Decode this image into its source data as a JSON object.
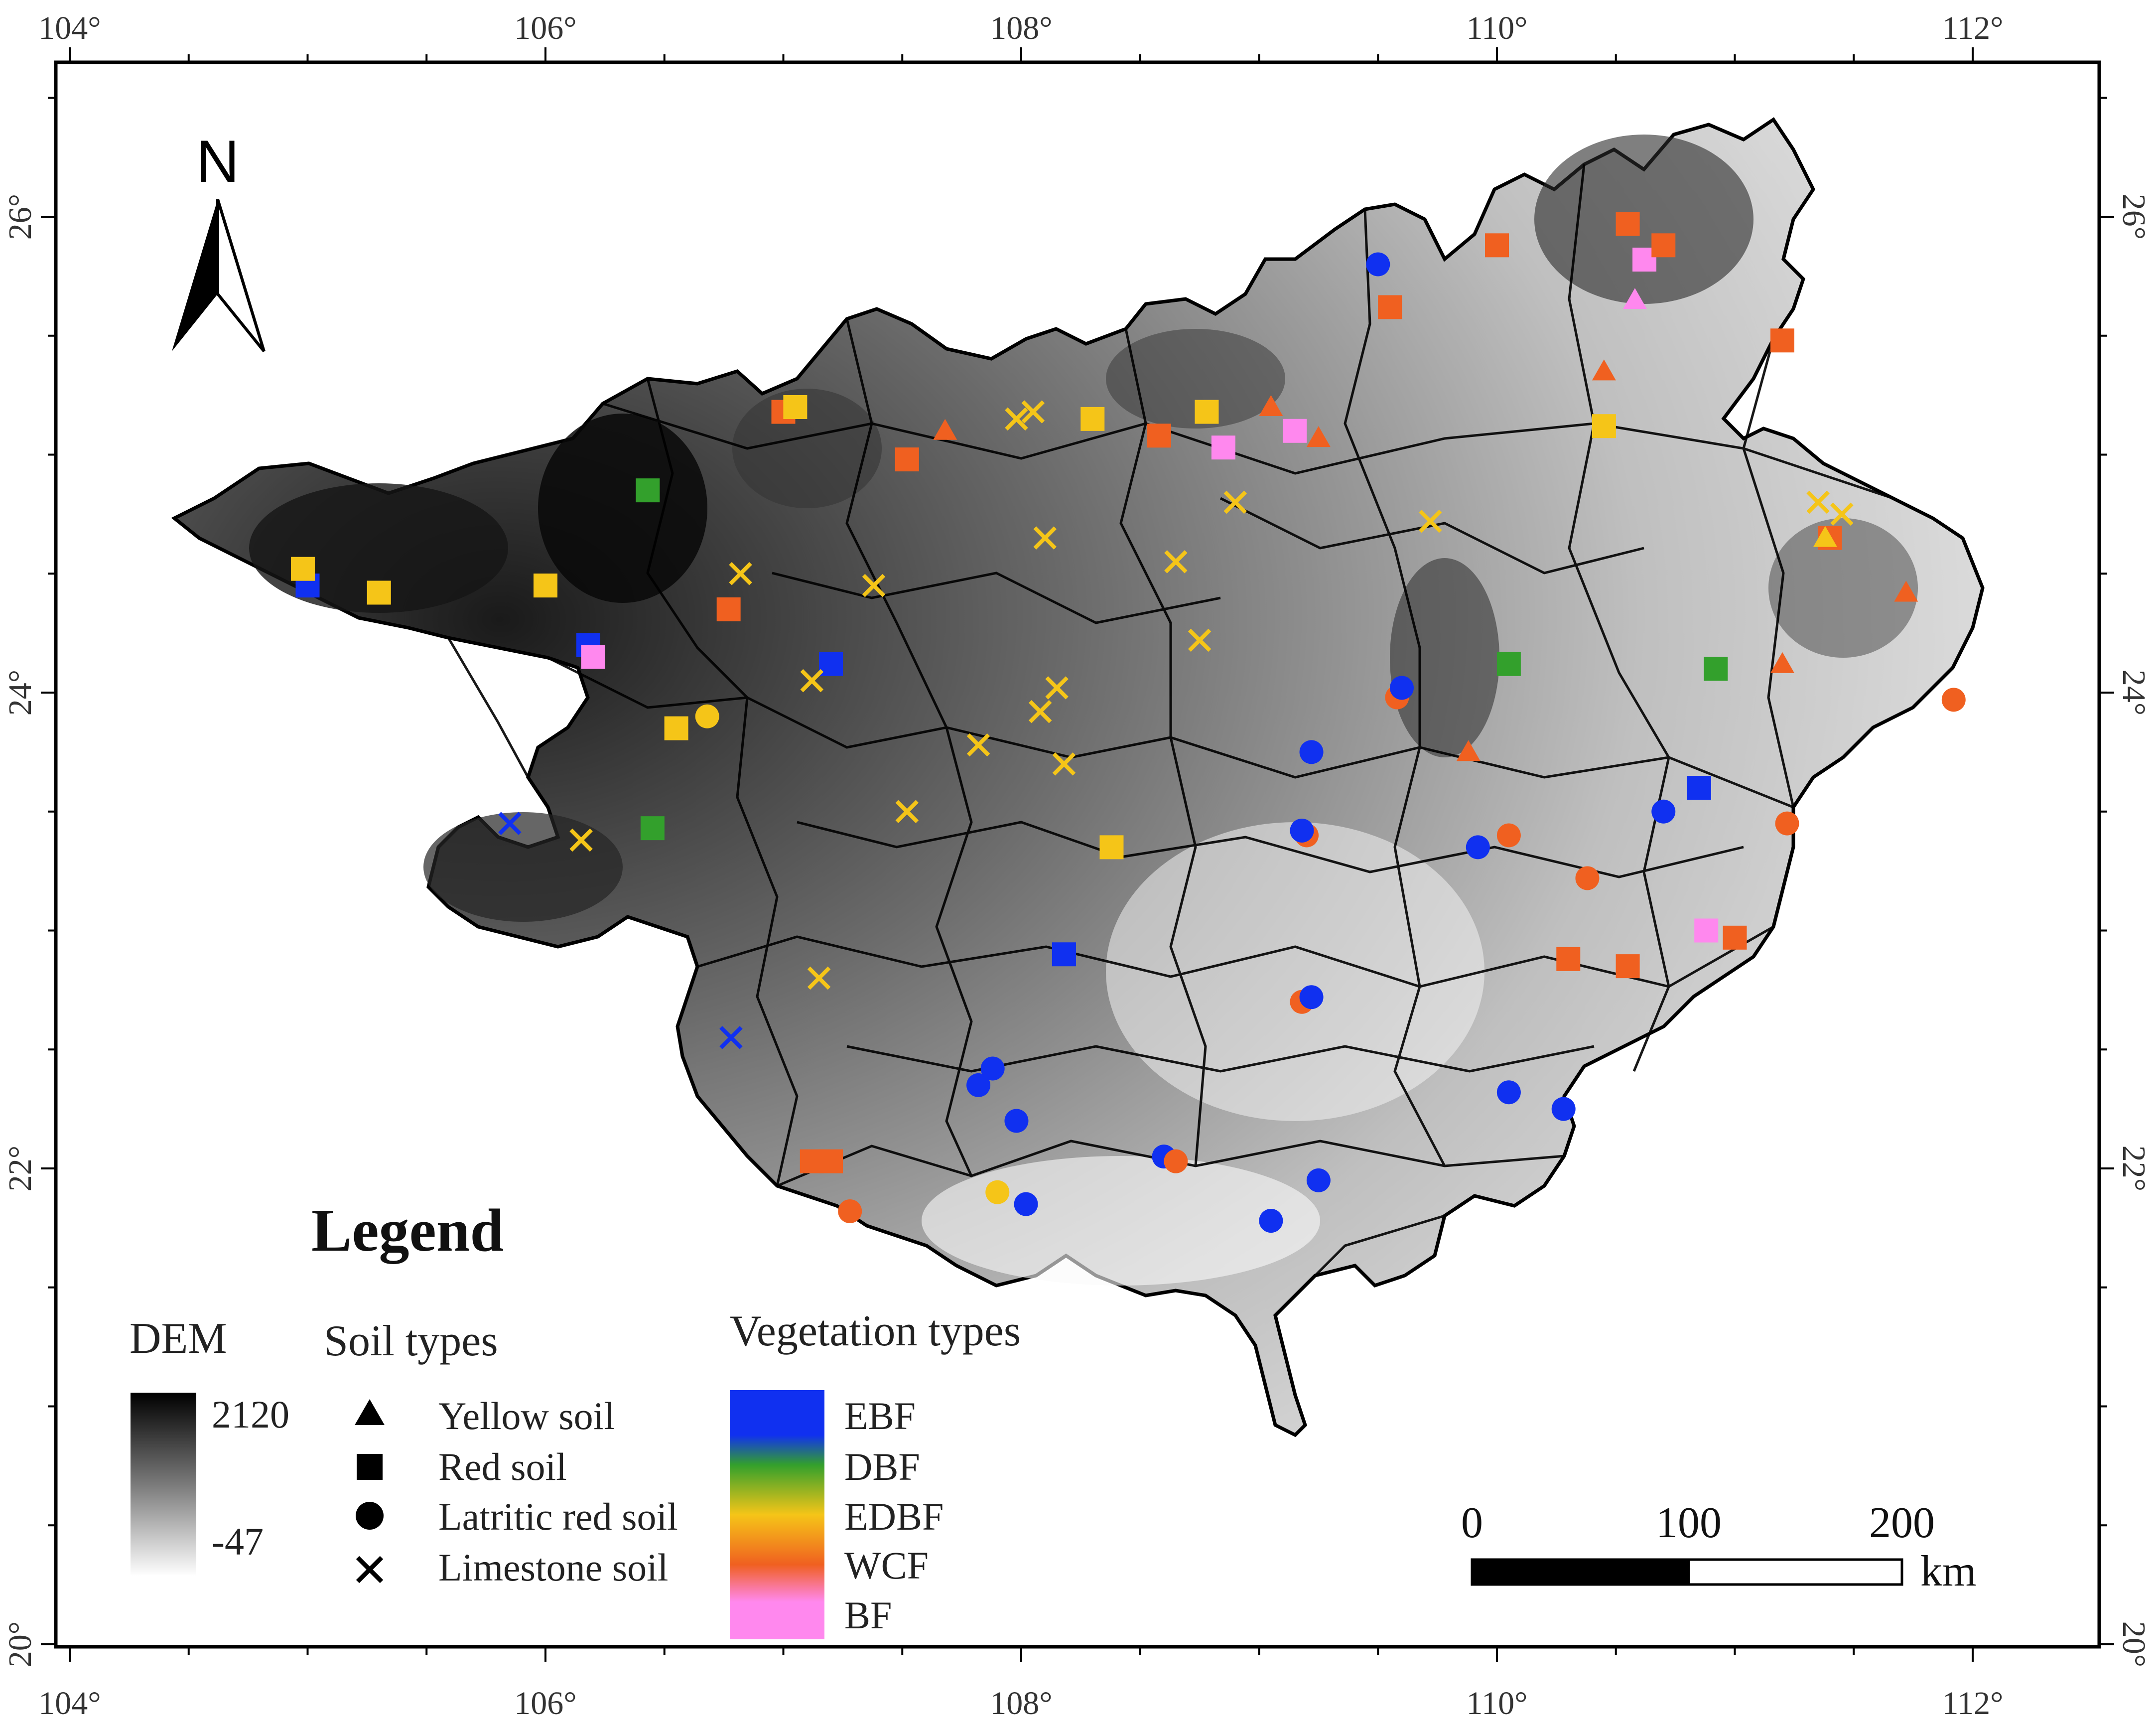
{
  "map": {
    "lon_labels": [
      "104°",
      "106°",
      "108°",
      "110°",
      "112°"
    ],
    "lat_labels": [
      "26°",
      "24°",
      "22°",
      "20°"
    ],
    "north_label": "N"
  },
  "legend": {
    "title": "Legend",
    "dem": {
      "title": "DEM",
      "max_label": "2120",
      "min_label": "-47",
      "max_value": 2120,
      "min_value": -47
    },
    "soil": {
      "title": "Soil types",
      "items": [
        {
          "label": "Yellow soil",
          "symbol": "triangle"
        },
        {
          "label": "Red soil",
          "symbol": "square"
        },
        {
          "label": "Latritic red soil",
          "symbol": "circle"
        },
        {
          "label": "Limestone soil",
          "symbol": "cross"
        }
      ]
    },
    "vegetation": {
      "title": "Vegetation types",
      "items": [
        {
          "label": "EBF",
          "color": "#1030f0"
        },
        {
          "label": "DBF",
          "color": "#33a02c"
        },
        {
          "label": "EDBF",
          "color": "#f5c518"
        },
        {
          "label": "WCF",
          "color": "#f06020"
        },
        {
          "label": "BF",
          "color": "#ff88ee"
        }
      ]
    }
  },
  "scale_bar": {
    "labels": [
      "0",
      "100",
      "200"
    ],
    "unit": "km"
  },
  "sites": [
    {
      "lon": 105.0,
      "lat": 24.45,
      "soil": "square",
      "veg": "EBF"
    },
    {
      "lon": 104.98,
      "lat": 24.52,
      "soil": "square",
      "veg": "EDBF"
    },
    {
      "lon": 105.3,
      "lat": 24.42,
      "soil": "square",
      "veg": "EDBF"
    },
    {
      "lon": 106.0,
      "lat": 24.45,
      "soil": "square",
      "veg": "EDBF"
    },
    {
      "lon": 106.18,
      "lat": 24.2,
      "soil": "square",
      "veg": "EBF"
    },
    {
      "lon": 106.2,
      "lat": 24.15,
      "soil": "square",
      "veg": "BF"
    },
    {
      "lon": 106.43,
      "lat": 24.85,
      "soil": "square",
      "veg": "DBF"
    },
    {
      "lon": 106.77,
      "lat": 24.35,
      "soil": "square",
      "veg": "WCF"
    },
    {
      "lon": 106.82,
      "lat": 24.5,
      "soil": "cross",
      "veg": "EDBF"
    },
    {
      "lon": 107.0,
      "lat": 25.18,
      "soil": "square",
      "veg": "WCF"
    },
    {
      "lon": 107.05,
      "lat": 25.2,
      "soil": "square",
      "veg": "EDBF"
    },
    {
      "lon": 107.38,
      "lat": 24.45,
      "soil": "cross",
      "veg": "EDBF"
    },
    {
      "lon": 107.52,
      "lat": 24.98,
      "soil": "square",
      "veg": "WCF"
    },
    {
      "lon": 107.68,
      "lat": 25.1,
      "soil": "triangle",
      "veg": "WCF"
    },
    {
      "lon": 107.2,
      "lat": 24.12,
      "soil": "square",
      "veg": "EBF"
    },
    {
      "lon": 107.12,
      "lat": 24.05,
      "soil": "cross",
      "veg": "EDBF"
    },
    {
      "lon": 106.55,
      "lat": 23.85,
      "soil": "square",
      "veg": "EDBF"
    },
    {
      "lon": 106.68,
      "lat": 23.9,
      "soil": "circle",
      "veg": "EDBF"
    },
    {
      "lon": 106.45,
      "lat": 23.43,
      "soil": "square",
      "veg": "DBF"
    },
    {
      "lon": 106.15,
      "lat": 23.38,
      "soil": "cross",
      "veg": "EDBF"
    },
    {
      "lon": 105.85,
      "lat": 23.45,
      "soil": "cross",
      "veg": "EBF"
    },
    {
      "lon": 107.98,
      "lat": 25.15,
      "soil": "cross",
      "veg": "EDBF"
    },
    {
      "lon": 108.05,
      "lat": 25.18,
      "soil": "cross",
      "veg": "EDBF"
    },
    {
      "lon": 108.3,
      "lat": 25.15,
      "soil": "square",
      "veg": "EDBF"
    },
    {
      "lon": 108.58,
      "lat": 25.08,
      "soil": "square",
      "veg": "WCF"
    },
    {
      "lon": 108.78,
      "lat": 25.18,
      "soil": "square",
      "veg": "EDBF"
    },
    {
      "lon": 108.1,
      "lat": 24.65,
      "soil": "cross",
      "veg": "EDBF"
    },
    {
      "lon": 108.65,
      "lat": 24.55,
      "soil": "cross",
      "veg": "EDBF"
    },
    {
      "lon": 108.9,
      "lat": 24.8,
      "soil": "cross",
      "veg": "EDBF"
    },
    {
      "lon": 108.85,
      "lat": 25.03,
      "soil": "square",
      "veg": "BF"
    },
    {
      "lon": 109.05,
      "lat": 25.2,
      "soil": "triangle",
      "veg": "WCF"
    },
    {
      "lon": 109.15,
      "lat": 25.1,
      "soil": "square",
      "veg": "BF"
    },
    {
      "lon": 109.25,
      "lat": 25.07,
      "soil": "triangle",
      "veg": "WCF"
    },
    {
      "lon": 108.75,
      "lat": 24.22,
      "soil": "cross",
      "veg": "EDBF"
    },
    {
      "lon": 108.15,
      "lat": 24.02,
      "soil": "cross",
      "veg": "EDBF"
    },
    {
      "lon": 108.08,
      "lat": 23.92,
      "soil": "cross",
      "veg": "EDBF"
    },
    {
      "lon": 107.82,
      "lat": 23.78,
      "soil": "cross",
      "veg": "EDBF"
    },
    {
      "lon": 108.18,
      "lat": 23.7,
      "soil": "cross",
      "veg": "EDBF"
    },
    {
      "lon": 107.52,
      "lat": 23.5,
      "soil": "cross",
      "veg": "EDBF"
    },
    {
      "lon": 108.38,
      "lat": 23.35,
      "soil": "square",
      "veg": "EDBF"
    },
    {
      "lon": 107.15,
      "lat": 22.8,
      "soil": "cross",
      "veg": "EDBF"
    },
    {
      "lon": 106.78,
      "lat": 22.55,
      "soil": "cross",
      "veg": "EBF"
    },
    {
      "lon": 108.18,
      "lat": 22.9,
      "soil": "square",
      "veg": "EBF"
    },
    {
      "lon": 107.88,
      "lat": 22.42,
      "soil": "circle",
      "veg": "EBF"
    },
    {
      "lon": 107.82,
      "lat": 22.35,
      "soil": "circle",
      "veg": "EBF"
    },
    {
      "lon": 107.98,
      "lat": 22.2,
      "soil": "circle",
      "veg": "EBF"
    },
    {
      "lon": 107.12,
      "lat": 22.03,
      "soil": "square",
      "veg": "WCF"
    },
    {
      "lon": 107.2,
      "lat": 22.03,
      "soil": "square",
      "veg": "WCF"
    },
    {
      "lon": 107.28,
      "lat": 21.82,
      "soil": "circle",
      "veg": "WCF"
    },
    {
      "lon": 107.9,
      "lat": 21.9,
      "soil": "circle",
      "veg": "EDBF"
    },
    {
      "lon": 108.02,
      "lat": 21.85,
      "soil": "circle",
      "veg": "EBF"
    },
    {
      "lon": 108.6,
      "lat": 22.05,
      "soil": "circle",
      "veg": "EBF"
    },
    {
      "lon": 108.65,
      "lat": 22.03,
      "soil": "circle",
      "veg": "WCF"
    },
    {
      "lon": 109.05,
      "lat": 21.78,
      "soil": "circle",
      "veg": "EBF"
    },
    {
      "lon": 109.25,
      "lat": 21.95,
      "soil": "circle",
      "veg": "EBF"
    },
    {
      "lon": 109.18,
      "lat": 22.7,
      "soil": "circle",
      "veg": "WCF"
    },
    {
      "lon": 109.22,
      "lat": 22.72,
      "soil": "circle",
      "veg": "EBF"
    },
    {
      "lon": 109.2,
      "lat": 23.4,
      "soil": "circle",
      "veg": "WCF"
    },
    {
      "lon": 109.18,
      "lat": 23.42,
      "soil": "circle",
      "veg": "EBF"
    },
    {
      "lon": 109.22,
      "lat": 23.75,
      "soil": "circle",
      "veg": "EBF"
    },
    {
      "lon": 109.58,
      "lat": 23.98,
      "soil": "circle",
      "veg": "WCF"
    },
    {
      "lon": 109.6,
      "lat": 24.02,
      "soil": "circle",
      "veg": "EBF"
    },
    {
      "lon": 109.88,
      "lat": 23.75,
      "soil": "triangle",
      "veg": "WCF"
    },
    {
      "lon": 109.92,
      "lat": 23.35,
      "soil": "circle",
      "veg": "EBF"
    },
    {
      "lon": 110.05,
      "lat": 23.4,
      "soil": "circle",
      "veg": "WCF"
    },
    {
      "lon": 110.38,
      "lat": 23.22,
      "soil": "circle",
      "veg": "WCF"
    },
    {
      "lon": 110.7,
      "lat": 23.5,
      "soil": "circle",
      "veg": "EBF"
    },
    {
      "lon": 110.85,
      "lat": 23.6,
      "soil": "square",
      "veg": "EBF"
    },
    {
      "lon": 110.05,
      "lat": 22.32,
      "soil": "circle",
      "veg": "EBF"
    },
    {
      "lon": 110.28,
      "lat": 22.25,
      "soil": "circle",
      "veg": "EBF"
    },
    {
      "lon": 110.3,
      "lat": 22.88,
      "soil": "square",
      "veg": "WCF"
    },
    {
      "lon": 110.55,
      "lat": 22.85,
      "soil": "square",
      "veg": "WCF"
    },
    {
      "lon": 110.88,
      "lat": 23.0,
      "soil": "square",
      "veg": "BF"
    },
    {
      "lon": 111.0,
      "lat": 22.97,
      "soil": "square",
      "veg": "WCF"
    },
    {
      "lon": 111.22,
      "lat": 23.45,
      "soil": "circle",
      "veg": "WCF"
    },
    {
      "lon": 111.92,
      "lat": 23.97,
      "soil": "circle",
      "veg": "WCF"
    },
    {
      "lon": 110.05,
      "lat": 24.12,
      "soil": "square",
      "veg": "DBF"
    },
    {
      "lon": 110.92,
      "lat": 24.1,
      "soil": "square",
      "veg": "DBF"
    },
    {
      "lon": 111.2,
      "lat": 24.12,
      "soil": "triangle",
      "veg": "WCF"
    },
    {
      "lon": 111.72,
      "lat": 24.42,
      "soil": "triangle",
      "veg": "WCF"
    },
    {
      "lon": 111.4,
      "lat": 24.65,
      "soil": "square",
      "veg": "WCF"
    },
    {
      "lon": 111.38,
      "lat": 24.65,
      "soil": "triangle",
      "veg": "EDBF"
    },
    {
      "lon": 111.35,
      "lat": 24.8,
      "soil": "cross",
      "veg": "EDBF"
    },
    {
      "lon": 111.45,
      "lat": 24.75,
      "soil": "cross",
      "veg": "EDBF"
    },
    {
      "lon": 109.72,
      "lat": 24.72,
      "soil": "cross",
      "veg": "EDBF"
    },
    {
      "lon": 110.45,
      "lat": 25.12,
      "soil": "square",
      "veg": "EDBF"
    },
    {
      "lon": 110.45,
      "lat": 25.35,
      "soil": "triangle",
      "veg": "WCF"
    },
    {
      "lon": 109.55,
      "lat": 25.62,
      "soil": "square",
      "veg": "WCF"
    },
    {
      "lon": 109.5,
      "lat": 25.8,
      "soil": "circle",
      "veg": "EBF"
    },
    {
      "lon": 110.0,
      "lat": 25.88,
      "soil": "square",
      "veg": "WCF"
    },
    {
      "lon": 110.55,
      "lat": 25.97,
      "soil": "square",
      "veg": "WCF"
    },
    {
      "lon": 110.62,
      "lat": 25.82,
      "soil": "square",
      "veg": "BF"
    },
    {
      "lon": 110.7,
      "lat": 25.88,
      "soil": "square",
      "veg": "WCF"
    },
    {
      "lon": 110.58,
      "lat": 25.65,
      "soil": "triangle",
      "veg": "BF"
    },
    {
      "lon": 111.2,
      "lat": 25.48,
      "soil": "square",
      "veg": "WCF"
    }
  ]
}
